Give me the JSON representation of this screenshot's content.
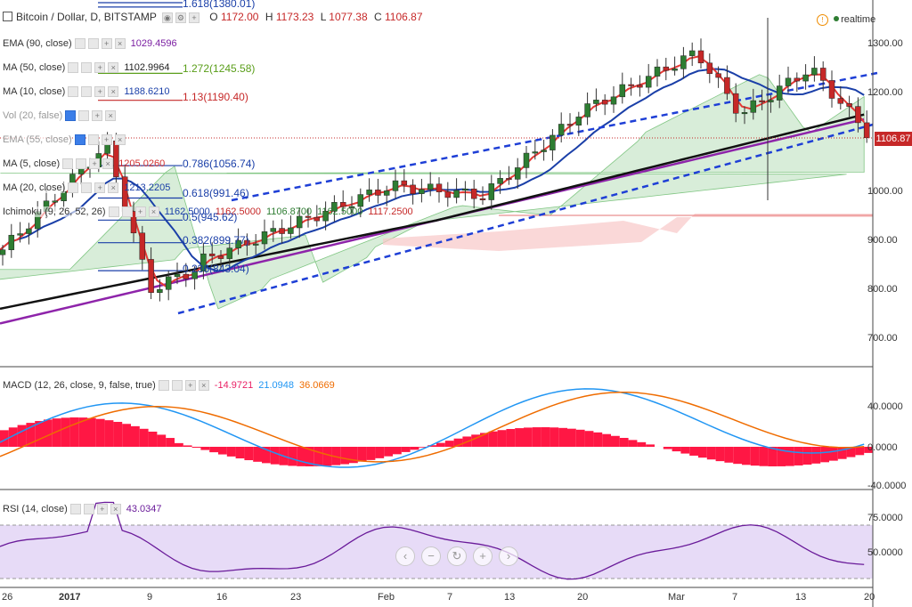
{
  "header": {
    "symbol": "Bitcoin / Dollar, D, BITSTAMP",
    "ohlc": {
      "o_label": "O",
      "o": "1172.00",
      "h_label": "H",
      "h": "1173.23",
      "l_label": "L",
      "l": "1077.38",
      "c_label": "C",
      "c": "1106.87"
    },
    "realtime_label": "realtime"
  },
  "indicators": [
    {
      "name": "EMA (90, close)",
      "value": "1029.4596",
      "value_color": "#7b1fa2"
    },
    {
      "name": "MA (50, close)",
      "value": "1102.9964",
      "value_color": "#222222"
    },
    {
      "name": "MA (10, close)",
      "value": "1188.6210",
      "value_color": "#1a3fa8"
    },
    {
      "name": "Vol (20, false)",
      "value": "",
      "value_color": "#333333"
    },
    {
      "name": "EMA (55, close)",
      "value": "",
      "value_color": "#333333"
    },
    {
      "name": "MA (5, close)",
      "value": "1205.0260",
      "value_color": "#d32f2f"
    },
    {
      "name": "MA (20, close)",
      "value": "1213.2205",
      "value_color": "#1a3fa8"
    },
    {
      "name": "Ichimoku (9, 26, 52, 26)",
      "values": [
        "1162.5000",
        "1162.5000",
        "1106.8700",
        "1162.5000",
        "1117.2500"
      ]
    }
  ],
  "fib_levels": [
    {
      "label": "1.618(1380.01)",
      "color": "#1a3fa8"
    },
    {
      "label": "1.272(1245.58)",
      "color": "#5a9e1a"
    },
    {
      "label": "1.13(1190.40)",
      "color": "#c62828"
    },
    {
      "label": "0.786(1056.74)",
      "color": "#1a3fa8"
    },
    {
      "label": "0.618(991.46)",
      "color": "#1a3fa8"
    },
    {
      "label": "0.5(945.62)",
      "color": "#1a3fa8"
    },
    {
      "label": "0.382(899.77)",
      "color": "#1a3fa8"
    },
    {
      "label": "0.236(843.04)",
      "color": "#1a3fa8"
    }
  ],
  "price_axis": {
    "ticks": [
      "1300.00",
      "1200.00",
      "1100.00",
      "1000.00",
      "900.00",
      "800.00",
      "700.00"
    ],
    "last_price": "1106.87"
  },
  "macd": {
    "name": "MACD (12, 26, close, 9, false, true)",
    "values": [
      "-14.9721",
      "21.0948",
      "36.0669"
    ],
    "value_colors": [
      "#e91e63",
      "#2196f3",
      "#ef6c00"
    ],
    "axis": [
      "40.0000",
      "0.0000",
      "-40.0000"
    ]
  },
  "rsi": {
    "name": "RSI (14, close)",
    "value": "43.0347",
    "axis": [
      "75.0000",
      "50.0000"
    ]
  },
  "time_axis": [
    "26",
    "2017",
    "9",
    "16",
    "23",
    "Feb",
    "7",
    "13",
    "20",
    "Mar",
    "7",
    "13",
    "20"
  ],
  "nav_buttons": [
    "‹",
    "−",
    "↻",
    "+",
    "›"
  ],
  "colors": {
    "bull": "#2e7d32",
    "bear": "#c62828",
    "ma5": "#e53935",
    "ma10": "#1a3fa8",
    "ma50": "#111111",
    "ema90": "#8e24aa",
    "cloud_green": "#c8e6c9",
    "cloud_red": "#f8c8c8",
    "macd_hist": "#ff1744",
    "macd_line": "#2196f3",
    "signal_line": "#ef6c00",
    "rsi_line": "#6a1b9a",
    "rsi_band": "#e1d2f5"
  }
}
